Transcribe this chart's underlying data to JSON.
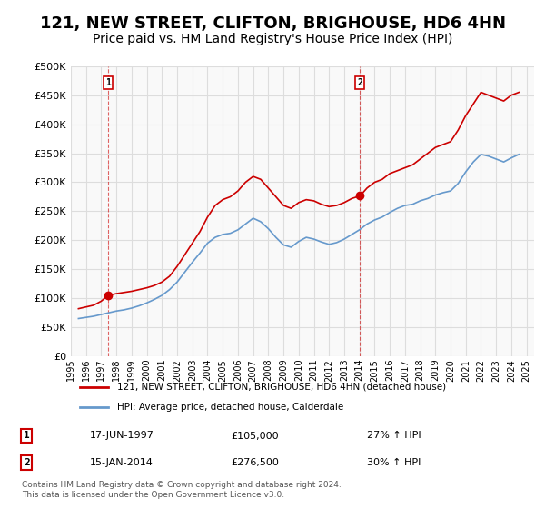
{
  "title": "121, NEW STREET, CLIFTON, BRIGHOUSE, HD6 4HN",
  "subtitle": "Price paid vs. HM Land Registry's House Price Index (HPI)",
  "title_fontsize": 13,
  "subtitle_fontsize": 10,
  "bg_color": "#ffffff",
  "grid_color": "#dddddd",
  "plot_bg": "#f9f9f9",
  "red_color": "#cc0000",
  "blue_color": "#6699cc",
  "legend_label_red": "121, NEW STREET, CLIFTON, BRIGHOUSE, HD6 4HN (detached house)",
  "legend_label_blue": "HPI: Average price, detached house, Calderdale",
  "annotation1_label": "1",
  "annotation1_date": "17-JUN-1997",
  "annotation1_price": "£105,000",
  "annotation1_hpi": "27% ↑ HPI",
  "annotation1_year": 1997.46,
  "annotation1_value": 105000,
  "annotation2_label": "2",
  "annotation2_date": "15-JAN-2014",
  "annotation2_price": "£276,500",
  "annotation2_hpi": "30% ↑ HPI",
  "annotation2_year": 2014.04,
  "annotation2_value": 276500,
  "ylim": [
    0,
    500000
  ],
  "yticks": [
    0,
    50000,
    100000,
    150000,
    200000,
    250000,
    300000,
    350000,
    400000,
    450000,
    500000
  ],
  "footer": "Contains HM Land Registry data © Crown copyright and database right 2024.\nThis data is licensed under the Open Government Licence v3.0.",
  "red_data": {
    "years": [
      1995.5,
      1996.0,
      1996.5,
      1997.0,
      1997.46,
      1998.0,
      1998.5,
      1999.0,
      1999.5,
      2000.0,
      2000.5,
      2001.0,
      2001.5,
      2002.0,
      2002.5,
      2003.0,
      2003.5,
      2004.0,
      2004.5,
      2005.0,
      2005.5,
      2006.0,
      2006.5,
      2007.0,
      2007.5,
      2008.0,
      2008.5,
      2009.0,
      2009.5,
      2010.0,
      2010.5,
      2011.0,
      2011.5,
      2012.0,
      2012.5,
      2013.0,
      2013.5,
      2014.04,
      2014.5,
      2015.0,
      2015.5,
      2016.0,
      2016.5,
      2017.0,
      2017.5,
      2018.0,
      2018.5,
      2019.0,
      2019.5,
      2020.0,
      2020.5,
      2021.0,
      2021.5,
      2022.0,
      2022.5,
      2023.0,
      2023.5,
      2024.0,
      2024.5
    ],
    "values": [
      82000,
      85000,
      88000,
      95000,
      105000,
      108000,
      110000,
      112000,
      115000,
      118000,
      122000,
      128000,
      138000,
      155000,
      175000,
      195000,
      215000,
      240000,
      260000,
      270000,
      275000,
      285000,
      300000,
      310000,
      305000,
      290000,
      275000,
      260000,
      255000,
      265000,
      270000,
      268000,
      262000,
      258000,
      260000,
      265000,
      272000,
      276500,
      290000,
      300000,
      305000,
      315000,
      320000,
      325000,
      330000,
      340000,
      350000,
      360000,
      365000,
      370000,
      390000,
      415000,
      435000,
      455000,
      450000,
      445000,
      440000,
      450000,
      455000
    ]
  },
  "blue_data": {
    "years": [
      1995.5,
      1996.0,
      1996.5,
      1997.0,
      1997.5,
      1998.0,
      1998.5,
      1999.0,
      1999.5,
      2000.0,
      2000.5,
      2001.0,
      2001.5,
      2002.0,
      2002.5,
      2003.0,
      2003.5,
      2004.0,
      2004.5,
      2005.0,
      2005.5,
      2006.0,
      2006.5,
      2007.0,
      2007.5,
      2008.0,
      2008.5,
      2009.0,
      2009.5,
      2010.0,
      2010.5,
      2011.0,
      2011.5,
      2012.0,
      2012.5,
      2013.0,
      2013.5,
      2014.0,
      2014.5,
      2015.0,
      2015.5,
      2016.0,
      2016.5,
      2017.0,
      2017.5,
      2018.0,
      2018.5,
      2019.0,
      2019.5,
      2020.0,
      2020.5,
      2021.0,
      2021.5,
      2022.0,
      2022.5,
      2023.0,
      2023.5,
      2024.0,
      2024.5
    ],
    "values": [
      65000,
      67000,
      69000,
      72000,
      75000,
      78000,
      80000,
      83000,
      87000,
      92000,
      98000,
      105000,
      115000,
      128000,
      145000,
      162000,
      178000,
      195000,
      205000,
      210000,
      212000,
      218000,
      228000,
      238000,
      232000,
      220000,
      205000,
      192000,
      188000,
      198000,
      205000,
      202000,
      197000,
      193000,
      196000,
      202000,
      210000,
      218000,
      228000,
      235000,
      240000,
      248000,
      255000,
      260000,
      262000,
      268000,
      272000,
      278000,
      282000,
      285000,
      298000,
      318000,
      335000,
      348000,
      345000,
      340000,
      335000,
      342000,
      348000
    ]
  }
}
